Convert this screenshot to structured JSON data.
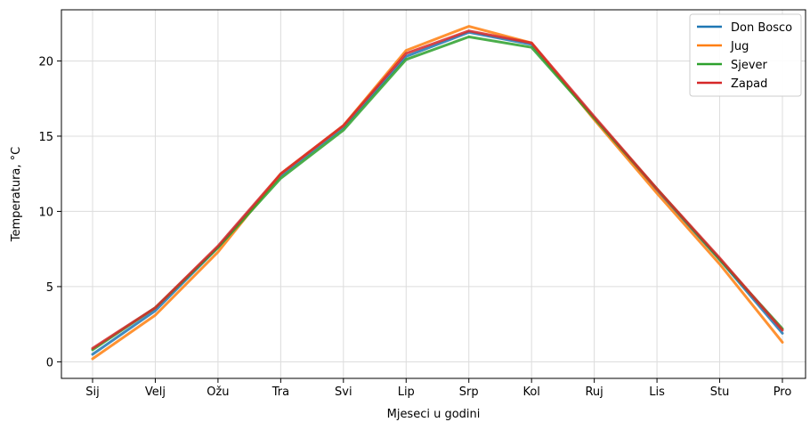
{
  "chart_data": {
    "type": "line",
    "title": "",
    "xlabel": "Mjeseci u godini",
    "ylabel": "Temperatura, °C",
    "categories": [
      "Sij",
      "Velj",
      "Ožu",
      "Tra",
      "Svi",
      "Lip",
      "Srp",
      "Kol",
      "Ruj",
      "Lis",
      "Stu",
      "Pro"
    ],
    "ylim": [
      -1.1,
      23.4
    ],
    "yticks": [
      0,
      5,
      10,
      15,
      20
    ],
    "grid": true,
    "legend_position": "top-right",
    "series": [
      {
        "name": "Don Bosco",
        "color": "#1f77b4",
        "values": [
          0.5,
          3.4,
          7.6,
          12.4,
          15.6,
          20.3,
          21.9,
          21.1,
          16.2,
          11.4,
          6.8,
          1.9
        ]
      },
      {
        "name": "Jug",
        "color": "#ff7f0e",
        "values": [
          0.2,
          3.1,
          7.3,
          12.5,
          15.7,
          20.7,
          22.3,
          21.2,
          16.1,
          11.2,
          6.5,
          1.3
        ]
      },
      {
        "name": "Sjever",
        "color": "#2ca02c",
        "values": [
          0.8,
          3.6,
          7.6,
          12.2,
          15.4,
          20.1,
          21.6,
          20.9,
          16.2,
          11.5,
          6.8,
          2.2
        ]
      },
      {
        "name": "Zapad",
        "color": "#d62728",
        "values": [
          0.9,
          3.6,
          7.7,
          12.5,
          15.7,
          20.5,
          22.0,
          21.2,
          16.3,
          11.5,
          6.9,
          2.1
        ]
      }
    ]
  }
}
